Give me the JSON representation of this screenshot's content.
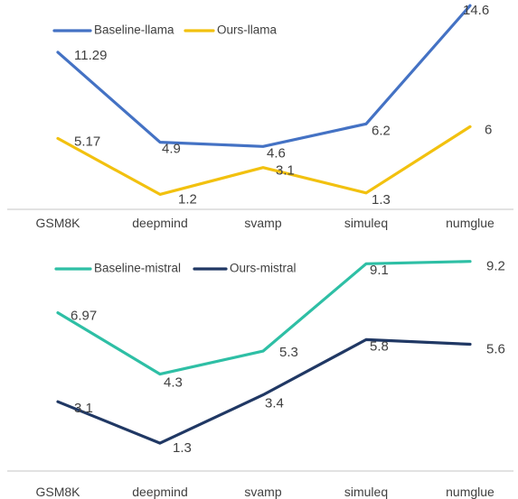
{
  "chart_data": [
    {
      "type": "line",
      "categories": [
        "GSM8K",
        "deepmind",
        "svamp",
        "simuleq",
        "numglue"
      ],
      "series": [
        {
          "name": "Baseline-llama",
          "color": "#4472C4",
          "values": [
            11.29,
            4.9,
            4.6,
            6.2,
            14.6
          ],
          "labels": [
            "11.29",
            "4.9",
            "4.6",
            "6.2",
            "14.6"
          ]
        },
        {
          "name": "Ours-llama",
          "color": "#F2C10F",
          "values": [
            5.17,
            1.2,
            3.1,
            1.3,
            6
          ],
          "labels": [
            "5.17",
            "1.2",
            "3.1",
            "1.3",
            "6"
          ]
        }
      ],
      "ylim": [
        0,
        16
      ],
      "grid": false,
      "legend": "top-left"
    },
    {
      "type": "line",
      "categories": [
        "GSM8K",
        "deepmind",
        "svamp",
        "simuleq",
        "numglue"
      ],
      "series": [
        {
          "name": "Baseline-mistral",
          "color": "#2EBFA5",
          "values": [
            6.97,
            4.3,
            5.3,
            9.1,
            9.2
          ],
          "labels": [
            "6.97",
            "4.3",
            "5.3",
            "9.1",
            "9.2"
          ]
        },
        {
          "name": "Ours-mistral",
          "color": "#203864",
          "values": [
            3.1,
            1.3,
            3.4,
            5.8,
            5.6
          ],
          "labels": [
            "3.1",
            "1.3",
            "3.4",
            "5.8",
            "5.6"
          ]
        }
      ],
      "ylim": [
        0,
        10
      ],
      "grid": false,
      "legend": "top-left"
    }
  ]
}
